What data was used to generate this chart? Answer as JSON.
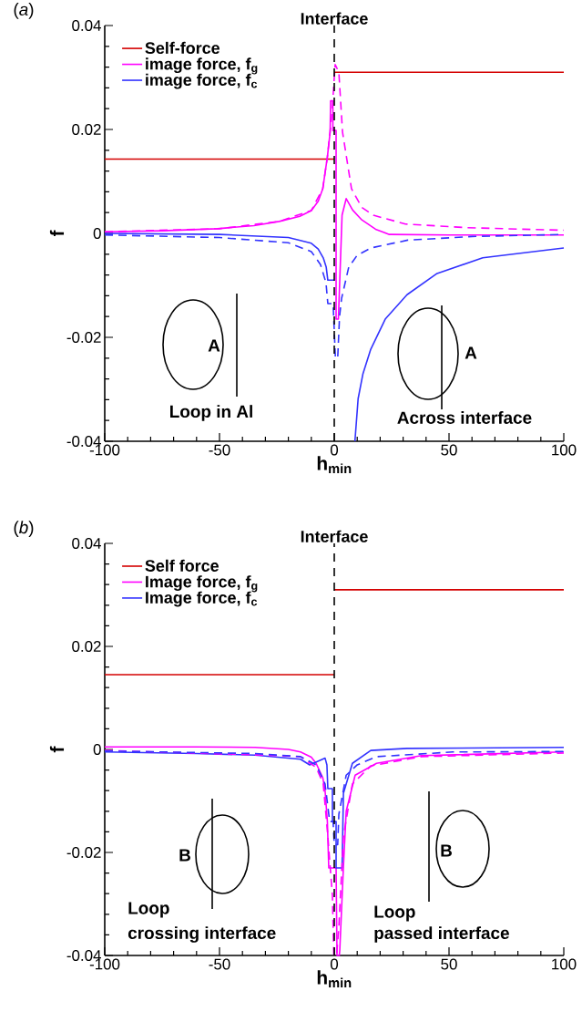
{
  "chart_data": [
    {
      "type": "line",
      "title": "(*a*)",
      "xlabel": "h$_{min}$",
      "ylabel": "f",
      "xlim": [
        -100,
        100
      ],
      "ylim": [
        -0.04,
        0.04
      ],
      "xticks": [
        -100,
        -50,
        0,
        50,
        100
      ],
      "yticks": [
        -0.04,
        -0.02,
        0,
        0.02,
        0.04
      ],
      "legend": "top left",
      "ref_lines": [
        {
          "axis": "x",
          "value": 0,
          "label": "Interface",
          "color": "#000000",
          "line_style": "dashed"
        }
      ],
      "annotations": [
        "A",
        "Loop in Al",
        "A",
        "Across interface"
      ],
      "series": [
        {
          "name": "Self-force",
          "color": "#d40000",
          "line_style": "solid",
          "x": [
            -100,
            0
          ],
          "values": [
            0.0143,
            0.0143
          ]
        },
        {
          "color": "#d40000",
          "line_style": "solid",
          "x": [
            0,
            100
          ],
          "values": [
            0.031,
            0.031
          ]
        },
        {
          "name": "image force, f$_{g}$",
          "color": "#ff00ff",
          "line_style": "solid",
          "x": [
            -100,
            -75,
            -51,
            -35,
            -24,
            -15,
            -10,
            -7,
            -5,
            -3,
            -1.8,
            -1.6,
            -0.6,
            -0.6,
            0.8,
            0.8,
            1.8,
            3.4,
            5.2,
            8,
            12,
            18,
            24,
            50,
            100
          ],
          "values": [
            0.0003,
            0.0005,
            0.0009,
            0.0015,
            0.0023,
            0.0033,
            0.0044,
            0.0062,
            0.0086,
            0.0147,
            0.0195,
            0.0255,
            0.0255,
            0.0198,
            0.0198,
            -0.0165,
            -0.0165,
            0.0035,
            0.0067,
            0.0045,
            0.0026,
            0.0008,
            -0.0002,
            -0.0003,
            -0.0003
          ]
        },
        {
          "name": "image force, f$_{c}$",
          "color": "#3333ff",
          "line_style": "solid",
          "x": [
            -100,
            -50,
            -20,
            -10,
            -7,
            -4.8,
            -3.5,
            -2.8,
            0,
            5,
            9,
            10.4,
            12.5,
            15.9,
            22.2,
            31.7,
            44.8,
            64.7,
            100
          ],
          "values": [
            0,
            -0.0002,
            -0.0008,
            -0.0019,
            -0.003,
            -0.0047,
            -0.0065,
            -0.009,
            -0.009,
            null,
            -0.04,
            -0.0318,
            -0.027,
            -0.0223,
            -0.0165,
            -0.0118,
            -0.0077,
            -0.0047,
            -0.0028
          ]
        },
        {
          "color": "#ff00ff",
          "line_style": "dashed",
          "x": [
            -100,
            -50,
            -24,
            -10,
            -5,
            -3,
            -1,
            0,
            0.4,
            2,
            3.6,
            7.5,
            12,
            17,
            31,
            58,
            100
          ],
          "values": [
            0.0003,
            0.0009,
            0.0023,
            0.0044,
            0.0086,
            0.0147,
            0.023,
            0.03,
            0.0325,
            0.031,
            0.0195,
            0.0086,
            0.005,
            0.0035,
            0.0018,
            0.0011,
            0.0006
          ]
        },
        {
          "color": "#3333ff",
          "line_style": "dashed",
          "x": [
            -100,
            -50,
            -20,
            -10,
            -6,
            -3.6,
            -2.8,
            -0.5,
            0.5,
            1.5,
            2.3,
            3.2,
            6.3,
            10,
            16,
            32,
            60,
            100
          ],
          "values": [
            -0.0003,
            -0.0008,
            -0.0018,
            -0.0035,
            -0.006,
            -0.0095,
            -0.0135,
            -0.0135,
            -0.024,
            -0.024,
            -0.016,
            -0.0125,
            -0.0065,
            -0.0042,
            -0.0028,
            -0.0013,
            -0.0006,
            -0.0002
          ]
        }
      ]
    },
    {
      "type": "line",
      "title": "(*b*)",
      "xlabel": "h$_{min}$",
      "ylabel": "f",
      "xlim": [
        -100,
        100
      ],
      "ylim": [
        -0.04,
        0.04
      ],
      "xticks": [
        -100,
        -50,
        0,
        50,
        100
      ],
      "yticks": [
        -0.04,
        -0.02,
        0,
        0.02,
        0.04
      ],
      "legend": "top left",
      "ref_lines": [
        {
          "axis": "x",
          "value": 0,
          "label": "Interface",
          "color": "#000000",
          "line_style": "dashed"
        }
      ],
      "annotations": [
        "B",
        "Loop",
        "crossing interface",
        "B",
        "Loop",
        "passed interface"
      ],
      "series": [
        {
          "name": "Self force",
          "color": "#d40000",
          "line_style": "solid",
          "x": [
            -100,
            0
          ],
          "values": [
            0.0145,
            0.0145
          ]
        },
        {
          "color": "#d40000",
          "line_style": "solid",
          "x": [
            0,
            100
          ],
          "values": [
            0.031,
            0.031
          ]
        },
        {
          "name": "Image force, f$_{g}$",
          "color": "#ff00ff",
          "line_style": "solid",
          "x": [
            -100,
            -60,
            -34.5,
            -20,
            -14.7,
            -10,
            -7.9,
            -5,
            -4,
            -3,
            -2.4,
            0.8,
            1.2,
            2.2,
            2.4,
            4,
            5.2,
            9.1,
            18.4,
            38,
            100
          ],
          "values": [
            0.0005,
            0.0005,
            0.0004,
            0,
            -0.0005,
            -0.0015,
            -0.0027,
            -0.0055,
            -0.008,
            -0.014,
            -0.023,
            -0.023,
            -0.04,
            -0.04,
            -0.039,
            -0.0227,
            -0.012,
            -0.005,
            -0.0027,
            -0.0012,
            -0.0005
          ]
        },
        {
          "name": "Image force, f$_{c}$",
          "color": "#3333ff",
          "line_style": "solid",
          "x": [
            -100,
            -60,
            -34.5,
            -14.7,
            -10.7,
            -4,
            -3.2,
            -2.8,
            -0.8,
            -0.8,
            0.8,
            0.8,
            3.4,
            4,
            7.9,
            15.9,
            31.7,
            100
          ],
          "values": [
            -0.0005,
            -0.0008,
            -0.0011,
            -0.0019,
            -0.003,
            -0.0017,
            -0.003,
            -0.0076,
            -0.0076,
            -0.014,
            -0.014,
            -0.023,
            -0.023,
            -0.0085,
            -0.0027,
            -0.0002,
            0.0002,
            0.0004
          ]
        },
        {
          "color": "#ff00ff",
          "line_style": "dashed",
          "x": [
            -100,
            -29.8,
            -14.7,
            -7.9,
            -4.8,
            -2.8,
            -0.8,
            -0.2,
            1,
            2,
            4,
            7.9,
            15.9,
            38,
            100
          ],
          "values": [
            -0.0002,
            -0.0011,
            -0.0014,
            -0.0035,
            -0.0067,
            -0.0168,
            -0.0285,
            -0.04,
            -0.04,
            -0.0345,
            -0.0168,
            -0.0067,
            -0.0032,
            -0.0014,
            -0.0007
          ]
        },
        {
          "color": "#3333ff",
          "line_style": "dashed",
          "x": [
            -100,
            -34.5,
            -14.7,
            -7.9,
            -4,
            -2,
            -0.5,
            0,
            1.5,
            2,
            5.2,
            10,
            18.4,
            51.6,
            100
          ],
          "values": [
            -0.0003,
            -0.0008,
            -0.0014,
            -0.003,
            -0.0067,
            -0.014,
            -0.014,
            -0.0185,
            -0.0185,
            -0.0126,
            -0.005,
            -0.003,
            -0.0014,
            -0.0005,
            -0.0004
          ]
        }
      ]
    }
  ]
}
